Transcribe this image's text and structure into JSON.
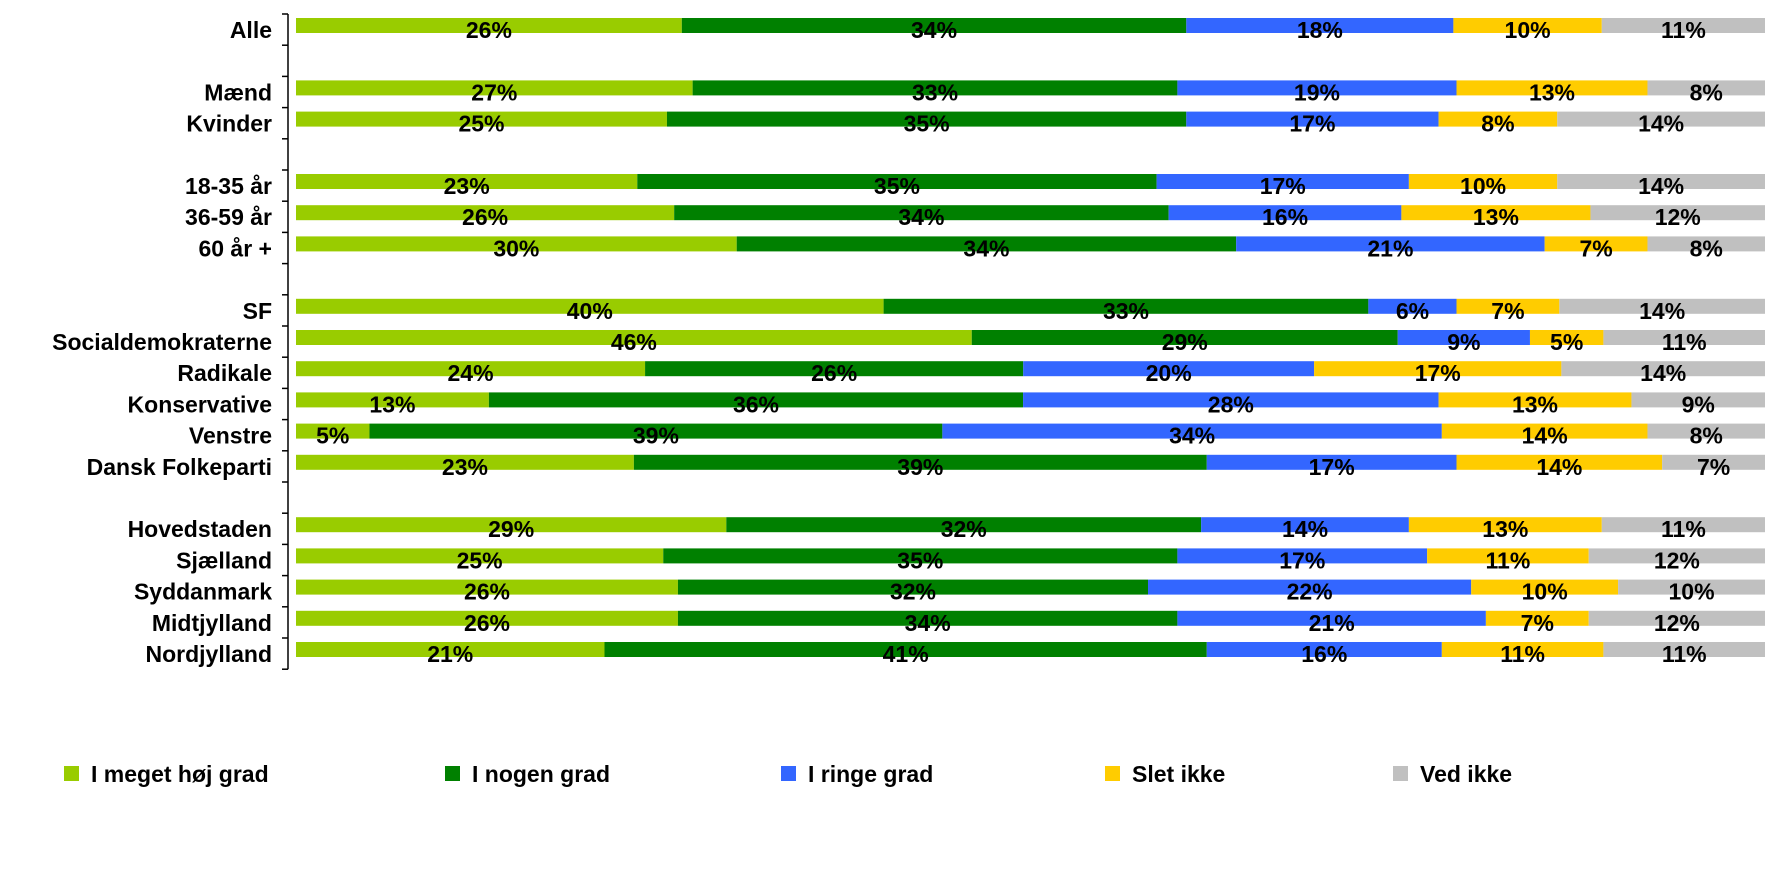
{
  "chart_data": {
    "type": "bar",
    "orientation": "horizontal",
    "stacked": "percent",
    "grid": false,
    "legend_position": "bottom",
    "value_format": "{v}%",
    "categories": [
      "Alle",
      "",
      "Mænd",
      "Kvinder",
      "",
      "18-35 år",
      "36-59 år",
      "60 år +",
      "",
      "SF",
      "Socialdemokraterne",
      "Radikale",
      "Konservative",
      "Venstre",
      "Dansk Folkeparti",
      "",
      "Hovedstaden",
      "Sjælland",
      "Syddanmark",
      "Midtjylland",
      "Nordjylland"
    ],
    "series": [
      {
        "name": "I meget høj grad",
        "color": "#99cc00",
        "values": [
          26,
          null,
          27,
          25,
          null,
          23,
          26,
          30,
          null,
          40,
          46,
          24,
          13,
          5,
          23,
          null,
          29,
          25,
          26,
          26,
          21
        ]
      },
      {
        "name": "I nogen grad",
        "color": "#008000",
        "values": [
          34,
          null,
          33,
          35,
          null,
          35,
          34,
          34,
          null,
          33,
          29,
          26,
          36,
          39,
          39,
          null,
          32,
          35,
          32,
          34,
          41
        ]
      },
      {
        "name": "I ringe grad",
        "color": "#3366ff",
        "values": [
          18,
          null,
          19,
          17,
          null,
          17,
          16,
          21,
          null,
          6,
          9,
          20,
          28,
          34,
          17,
          null,
          14,
          17,
          22,
          21,
          16
        ]
      },
      {
        "name": "Slet ikke",
        "color": "#ffcc00",
        "values": [
          10,
          null,
          13,
          8,
          null,
          10,
          13,
          7,
          null,
          7,
          5,
          17,
          13,
          14,
          14,
          null,
          13,
          11,
          10,
          7,
          11
        ]
      },
      {
        "name": "Ved ikke",
        "color": "#c0c0c0",
        "values": [
          11,
          null,
          8,
          14,
          null,
          14,
          12,
          8,
          null,
          14,
          11,
          14,
          9,
          8,
          7,
          null,
          11,
          12,
          10,
          12,
          11
        ]
      }
    ]
  }
}
